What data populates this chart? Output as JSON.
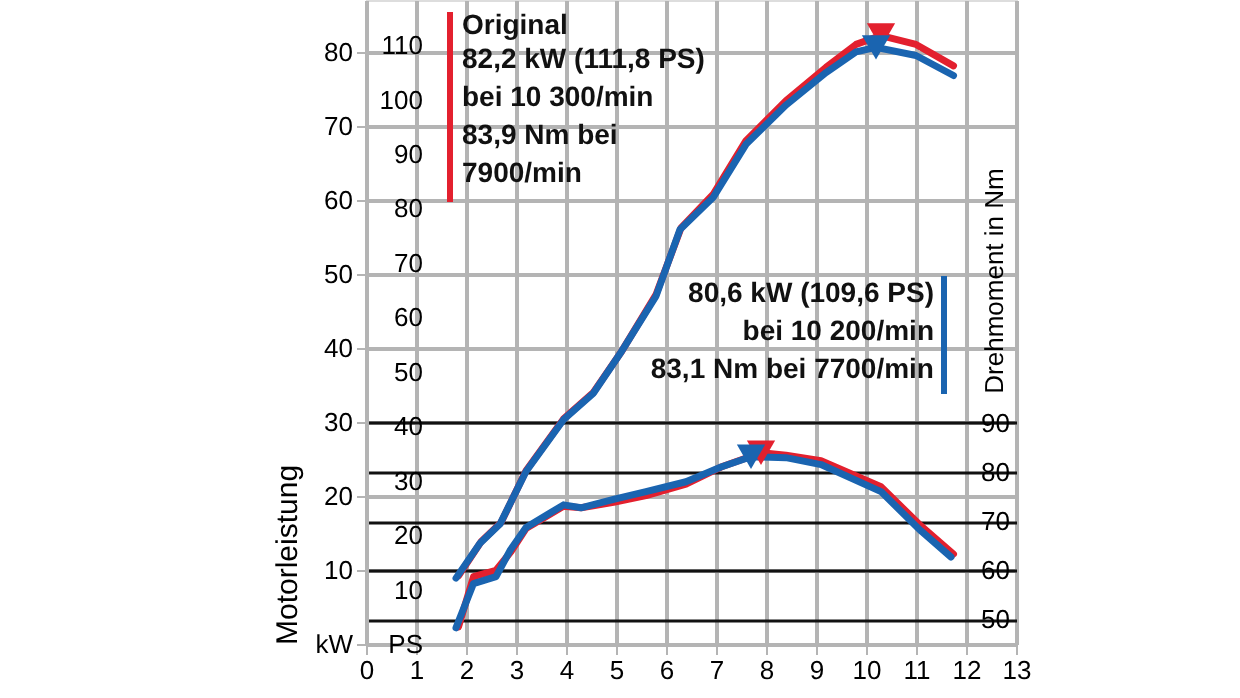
{
  "chart_data": {
    "type": "line",
    "ylabel": "Motorleistung",
    "y2label": "Drehmoment in Nm",
    "xlim": [
      0,
      13
    ],
    "xticks": [
      0,
      1,
      2,
      3,
      4,
      5,
      6,
      7,
      8,
      9,
      10,
      11,
      12,
      13
    ],
    "ylim": [
      0,
      87
    ],
    "yticks": [
      {
        "value": 0,
        "label": "kW"
      },
      10,
      20,
      30,
      40,
      50,
      60,
      70,
      80
    ],
    "y3lim": [
      0,
      118.3
    ],
    "y3ticks": [
      {
        "value": 0,
        "label": "PS"
      },
      10,
      20,
      30,
      40,
      50,
      60,
      70,
      80,
      90,
      100,
      110
    ],
    "y2lim": [
      45,
      176
    ],
    "y2ticks": [
      50,
      60,
      70,
      80,
      90
    ],
    "grid": true,
    "legend": "top left",
    "line_style": "solid",
    "annotations": [
      "82,2 kW (111,8 PS)\nbei 10 300/min\n83,9 Nm bei\n7900/min",
      "80,6 kW (109,6 PS)\nbei 10 200/min\n83,1 Nm bei 7700/min"
    ],
    "series": [
      {
        "name": "Original",
        "color": "#e3202e",
        "x": [
          1.85,
          2.3,
          2.7,
          3.2,
          3.95,
          4.55,
          5.1,
          5.8,
          6.3,
          6.95,
          7.6,
          8.4,
          9.2,
          9.8,
          10.3,
          11.0,
          11.75
        ],
        "values": [
          9.2,
          13.8,
          16.4,
          23.4,
          30.4,
          34.0,
          39.4,
          47.2,
          56.2,
          60.8,
          68.0,
          73.4,
          77.9,
          81.0,
          82.2,
          81.0,
          78.1
        ]
      },
      {
        "color": "#e3202e",
        "axis": "y2",
        "x": [
          1.85,
          2.15,
          2.6,
          2.9,
          3.2,
          3.95,
          4.3,
          4.95,
          5.6,
          6.4,
          7.1,
          7.9,
          8.4,
          9.1,
          10.3,
          11.1,
          11.75
        ],
        "values": [
          48.5,
          58.7,
          60.0,
          63.8,
          68.5,
          73.0,
          72.7,
          73.8,
          75.2,
          77.5,
          81.0,
          83.9,
          83.4,
          82.3,
          77.0,
          69.0,
          63.3
        ]
      },
      {
        "color": "#1a64b0",
        "x": [
          1.8,
          2.28,
          2.68,
          3.2,
          3.95,
          4.55,
          5.08,
          5.8,
          6.28,
          6.95,
          7.6,
          8.4,
          9.2,
          9.8,
          10.2,
          11.0,
          11.75
        ],
        "values": [
          8.9,
          13.6,
          16.2,
          23.3,
          30.3,
          33.9,
          39.2,
          47.0,
          56.0,
          60.4,
          67.5,
          72.8,
          77.2,
          80.0,
          80.6,
          79.5,
          76.8
        ]
      },
      {
        "color": "#1a64b0",
        "axis": "y2",
        "x": [
          1.8,
          2.15,
          2.6,
          2.88,
          3.2,
          3.95,
          4.3,
          4.95,
          5.6,
          6.4,
          7.1,
          7.7,
          8.4,
          9.1,
          10.3,
          11.1,
          11.7
        ],
        "values": [
          48.3,
          57.3,
          58.7,
          64.0,
          68.7,
          73.3,
          72.7,
          74.4,
          76.0,
          78.0,
          81.0,
          83.1,
          82.9,
          81.5,
          76.0,
          68.0,
          62.7
        ]
      },
      {
        "type": "scatter",
        "marker": "triangle",
        "color": "#e3202e",
        "x": [
          10.3
        ],
        "values": [
          82.2
        ]
      },
      {
        "type": "scatter",
        "marker": "triangle",
        "color": "#e3202e",
        "axis": "y2",
        "x": [
          7.9
        ],
        "values": [
          83.9
        ]
      },
      {
        "type": "scatter",
        "marker": "triangle",
        "color": "#1a64b0",
        "x": [
          10.2
        ],
        "values": [
          80.6
        ]
      },
      {
        "type": "scatter",
        "marker": "triangle",
        "color": "#1a64b0",
        "axis": "y2",
        "x": [
          7.7
        ],
        "values": [
          83.1
        ]
      }
    ]
  }
}
